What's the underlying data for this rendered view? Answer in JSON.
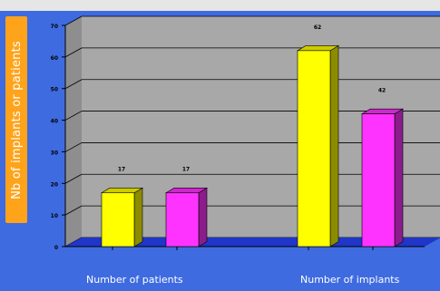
{
  "chart_data": {
    "type": "bar",
    "title": "",
    "ylabel": "Nb of implants or patients",
    "ylim": [
      0,
      70
    ],
    "yticks": [
      "0",
      "10",
      "20",
      "30",
      "40",
      "50",
      "60",
      "70"
    ],
    "groups": [
      {
        "label": "Number of patients",
        "values": [
          17,
          17
        ],
        "value_labels": [
          "17",
          "17"
        ]
      },
      {
        "label": "Number of  implants",
        "values": [
          62,
          42
        ],
        "value_labels": [
          "62",
          "42"
        ]
      }
    ],
    "category_tick_labels": [
      "",
      "",
      "",
      ""
    ],
    "series_colors": [
      "#ffff00",
      "#ff33ff"
    ],
    "grid": true,
    "three_d": true
  },
  "colors": {
    "frame_background": "#3f6be0",
    "plot_wall": "#a8a8a8",
    "floor": "#1f36c8",
    "label_box": "#ffa31a"
  }
}
